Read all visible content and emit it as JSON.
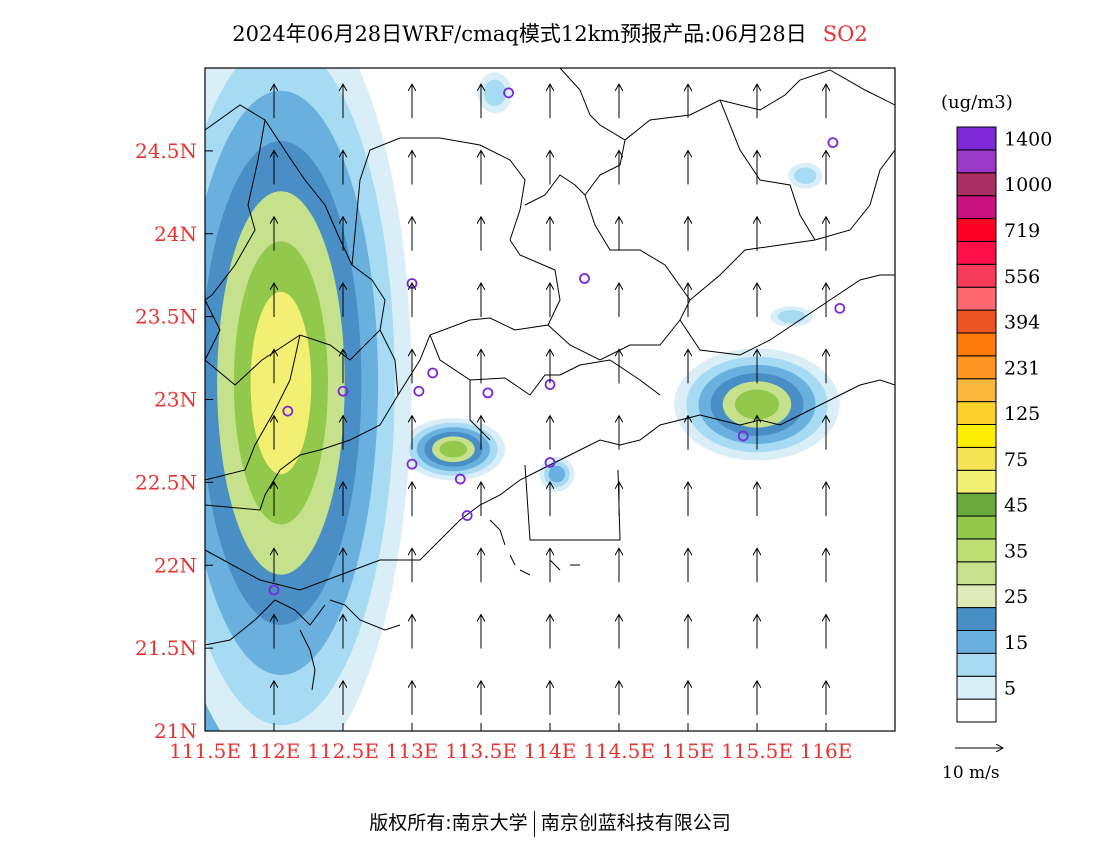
{
  "title": {
    "main": "2024年06月28日WRF/cmaq模式12km预报产品:06月28日",
    "species": "SO2"
  },
  "map": {
    "lon_range": [
      111.5,
      116.5
    ],
    "lat_range": [
      21.0,
      25.0
    ],
    "lon_ticks": [
      {
        "value": 111.5,
        "label": "111.5E"
      },
      {
        "value": 112.0,
        "label": "112E"
      },
      {
        "value": 112.5,
        "label": "112.5E"
      },
      {
        "value": 113.0,
        "label": "113E"
      },
      {
        "value": 113.5,
        "label": "113.5E"
      },
      {
        "value": 114.0,
        "label": "114E"
      },
      {
        "value": 114.5,
        "label": "114.5E"
      },
      {
        "value": 115.0,
        "label": "115E"
      },
      {
        "value": 115.5,
        "label": "115.5E"
      },
      {
        "value": 116.0,
        "label": "116E"
      }
    ],
    "lat_ticks": [
      {
        "value": 21.0,
        "label": "21N"
      },
      {
        "value": 21.5,
        "label": "21.5N"
      },
      {
        "value": 22.0,
        "label": "22N"
      },
      {
        "value": 22.5,
        "label": "22.5N"
      },
      {
        "value": 23.0,
        "label": "23N"
      },
      {
        "value": 23.5,
        "label": "23.5N"
      },
      {
        "value": 24.0,
        "label": "24N"
      },
      {
        "value": 24.5,
        "label": "24.5N"
      }
    ],
    "tick_label_color": "#e8332f",
    "wind": {
      "lons": [
        112.0,
        112.5,
        113.0,
        113.5,
        114.0,
        114.5,
        115.0,
        115.5,
        116.0
      ],
      "lats": [
        21.2,
        21.6,
        22.0,
        22.4,
        22.8,
        23.2,
        23.6,
        24.0,
        24.4,
        24.8
      ],
      "reference_label": "10 m/s"
    },
    "stations": [
      {
        "lon": 113.7,
        "lat": 24.85
      },
      {
        "lon": 116.05,
        "lat": 24.55
      },
      {
        "lon": 113.0,
        "lat": 23.7
      },
      {
        "lon": 114.25,
        "lat": 23.73
      },
      {
        "lon": 116.1,
        "lat": 23.55
      },
      {
        "lon": 112.5,
        "lat": 23.05
      },
      {
        "lon": 113.15,
        "lat": 23.16
      },
      {
        "lon": 113.05,
        "lat": 23.05
      },
      {
        "lon": 113.55,
        "lat": 23.04
      },
      {
        "lon": 114.0,
        "lat": 23.09
      },
      {
        "lon": 112.1,
        "lat": 22.93
      },
      {
        "lon": 113.0,
        "lat": 22.61
      },
      {
        "lon": 113.35,
        "lat": 22.52
      },
      {
        "lon": 114.0,
        "lat": 22.62
      },
      {
        "lon": 113.4,
        "lat": 22.3
      },
      {
        "lon": 115.4,
        "lat": 22.78
      },
      {
        "lon": 112.0,
        "lat": 21.85
      }
    ],
    "plumes": [
      {
        "cx": 111.5,
        "cy": 22.95,
        "rx": 0.12,
        "ry": 0.55,
        "level": 6
      },
      {
        "cx": 112.05,
        "cy": 23.1,
        "rx": 0.22,
        "ry": 0.55,
        "level": 5
      },
      {
        "cx": 113.3,
        "cy": 22.7,
        "rx": 0.1,
        "ry": 0.05,
        "level": 4
      },
      {
        "cx": 115.5,
        "cy": 22.97,
        "rx": 0.16,
        "ry": 0.09,
        "level": 4
      },
      {
        "cx": 114.05,
        "cy": 22.55,
        "rx": 0.06,
        "ry": 0.05,
        "level": 1
      },
      {
        "cx": 115.85,
        "cy": 24.35,
        "rx": 0.08,
        "ry": 0.05,
        "level": 0
      },
      {
        "cx": 115.75,
        "cy": 23.5,
        "rx": 0.1,
        "ry": 0.04,
        "level": 0
      },
      {
        "cx": 113.6,
        "cy": 24.85,
        "rx": 0.08,
        "ry": 0.08,
        "level": 0
      }
    ]
  },
  "colorbar": {
    "unit": "(ug/m3)",
    "colors": [
      "#ffffff",
      "#daeef8",
      "#a7dbf4",
      "#6ab0de",
      "#4a8ec6",
      "#deebb9",
      "#c5e18b",
      "#bddf74",
      "#92c84b",
      "#6aa93c",
      "#f3ef72",
      "#f5e456",
      "#ffee00",
      "#fcd22a",
      "#fbb73b",
      "#fd951f",
      "#fb7a0a",
      "#ec5426",
      "#fd6870",
      "#f63c5a",
      "#ff0f4a",
      "#fd0024",
      "#c91080",
      "#a92e62",
      "#9b38c7",
      "#7f28d8"
    ],
    "labels": [
      "5",
      "15",
      "25",
      "35",
      "45",
      "75",
      "125",
      "231",
      "394",
      "556",
      "719",
      "1000",
      "1400"
    ]
  },
  "copyright": {
    "left": "版权所有:南京大学",
    "right": "南京创蓝科技有限公司"
  }
}
